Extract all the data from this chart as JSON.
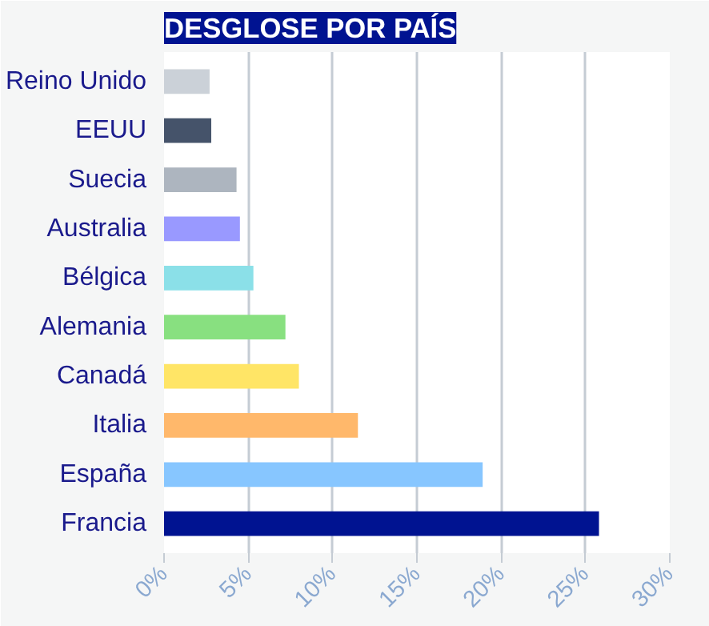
{
  "chart_data": {
    "type": "bar",
    "orientation": "horizontal",
    "title": "DESGLOSE POR PAÍS",
    "categories": [
      "Reino Unido",
      "EEUU",
      "Suecia",
      "Australia",
      "Bélgica",
      "Alemania",
      "Canadá",
      "Italia",
      "España",
      "Francia"
    ],
    "values": [
      2.7,
      2.8,
      4.3,
      4.5,
      5.3,
      7.2,
      8.0,
      11.5,
      18.9,
      25.8
    ],
    "colors": [
      "#cbd1d8",
      "#45536a",
      "#adb5bf",
      "#9999ff",
      "#8be0e8",
      "#88e080",
      "#ffe566",
      "#ffb86b",
      "#87c6ff",
      "#001391"
    ],
    "xlim": [
      0,
      30
    ],
    "xticks": [
      {
        "value": 0,
        "label": "0%"
      },
      {
        "value": 5,
        "label": "5%"
      },
      {
        "value": 10,
        "label": "10%"
      },
      {
        "value": 15,
        "label": "15%"
      },
      {
        "value": 20,
        "label": "20%"
      },
      {
        "value": 25,
        "label": "25%"
      },
      {
        "value": 30,
        "label": "30%"
      }
    ],
    "grid": "x"
  }
}
